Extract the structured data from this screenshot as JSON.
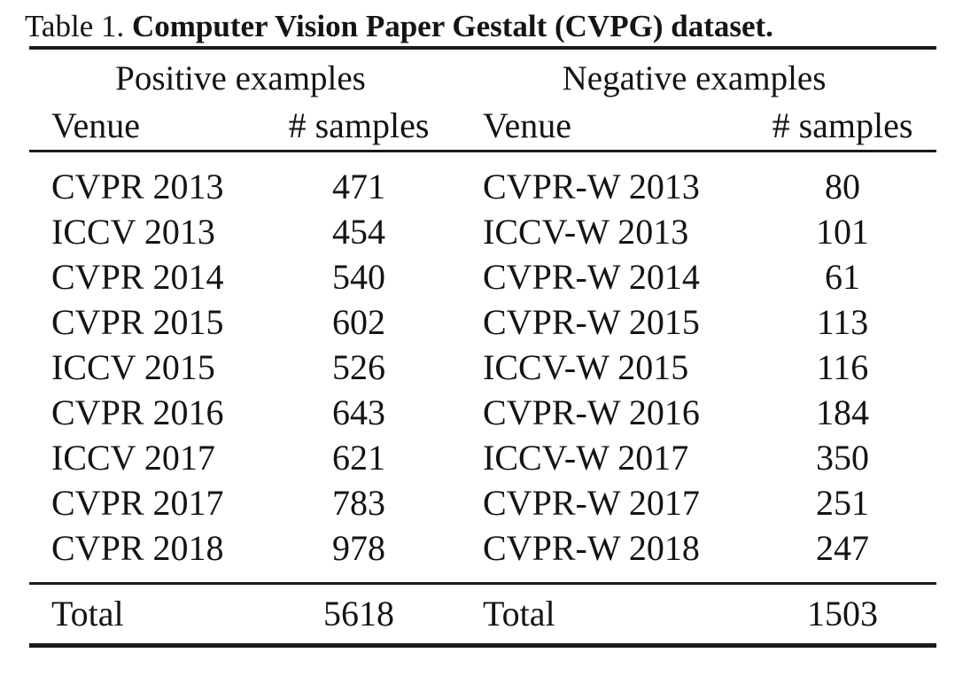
{
  "caption": {
    "label": "Table 1.",
    "title": "Computer Vision Paper Gestalt (CVPG) dataset."
  },
  "table": {
    "group_headers": {
      "positive": "Positive examples",
      "negative": "Negative examples"
    },
    "column_headers": {
      "pos_venue": "Venue",
      "pos_samples": "# samples",
      "neg_venue": "Venue",
      "neg_samples": "# samples"
    },
    "rows": [
      {
        "pos_venue": "CVPR 2013",
        "pos_samples": "471",
        "neg_venue": "CVPR-W 2013",
        "neg_samples": "80"
      },
      {
        "pos_venue": "ICCV 2013",
        "pos_samples": "454",
        "neg_venue": "ICCV-W 2013",
        "neg_samples": "101"
      },
      {
        "pos_venue": "CVPR 2014",
        "pos_samples": "540",
        "neg_venue": "CVPR-W 2014",
        "neg_samples": "61"
      },
      {
        "pos_venue": "CVPR 2015",
        "pos_samples": "602",
        "neg_venue": "CVPR-W 2015",
        "neg_samples": "113"
      },
      {
        "pos_venue": "ICCV 2015",
        "pos_samples": "526",
        "neg_venue": "ICCV-W 2015",
        "neg_samples": "116"
      },
      {
        "pos_venue": "CVPR 2016",
        "pos_samples": "643",
        "neg_venue": "CVPR-W 2016",
        "neg_samples": "184"
      },
      {
        "pos_venue": "ICCV 2017",
        "pos_samples": "621",
        "neg_venue": "ICCV-W 2017",
        "neg_samples": "350"
      },
      {
        "pos_venue": "CVPR 2017",
        "pos_samples": "783",
        "neg_venue": "CVPR-W 2017",
        "neg_samples": "251"
      },
      {
        "pos_venue": "CVPR 2018",
        "pos_samples": "978",
        "neg_venue": "CVPR-W 2018",
        "neg_samples": "247"
      }
    ],
    "totals": {
      "pos_label": "Total",
      "pos_value": "5618",
      "neg_label": "Total",
      "neg_value": "1503"
    }
  },
  "colors": {
    "text": "#141414",
    "rule": "#1b1b1b",
    "background": "#ffffff"
  }
}
